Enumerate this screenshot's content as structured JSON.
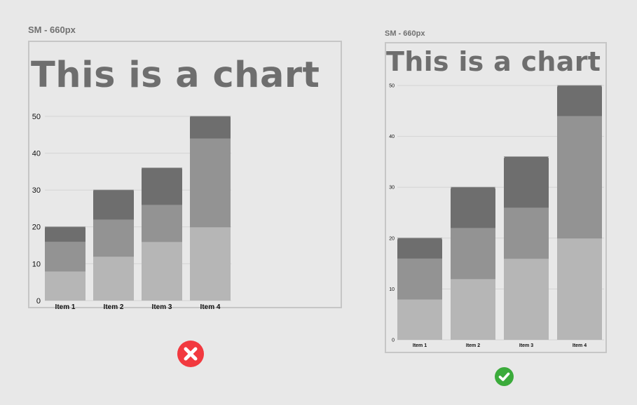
{
  "panels": [
    {
      "caption": "SM - 660px",
      "verdict": "wrong",
      "verdict_icon": "x-icon",
      "verdict_color": "#f2393f"
    },
    {
      "caption": "SM - 660px",
      "verdict": "correct",
      "verdict_icon": "check-icon",
      "verdict_color": "#3bab3b"
    }
  ],
  "colors": {
    "bottom": "#b6b6b6",
    "middle": "#939393",
    "top": "#6e6e6e",
    "grid": "#d4d4d4"
  },
  "chart_data": [
    {
      "type": "bar",
      "stacked": true,
      "title": "This is a chart",
      "categories": [
        "Item 1",
        "Item 2",
        "Item 3",
        "Item 4"
      ],
      "series": [
        {
          "values": [
            8,
            12,
            16,
            20
          ]
        },
        {
          "values": [
            8,
            10,
            10,
            24
          ]
        },
        {
          "values": [
            4,
            8,
            10,
            6
          ]
        }
      ],
      "ylim": [
        0,
        50
      ],
      "yticks": [
        0,
        10,
        20,
        30,
        40,
        50
      ],
      "grid": true,
      "legend": "none"
    },
    {
      "type": "bar",
      "stacked": true,
      "title": "This is a chart",
      "categories": [
        "Item 1",
        "Item 2",
        "Item 3",
        "Item 4"
      ],
      "series": [
        {
          "values": [
            8,
            12,
            16,
            20
          ]
        },
        {
          "values": [
            8,
            10,
            10,
            24
          ]
        },
        {
          "values": [
            4,
            8,
            10,
            6
          ]
        }
      ],
      "ylim": [
        0,
        50
      ],
      "yticks": [
        0,
        10,
        20,
        30,
        40,
        50
      ],
      "grid": true,
      "legend": "none"
    }
  ]
}
